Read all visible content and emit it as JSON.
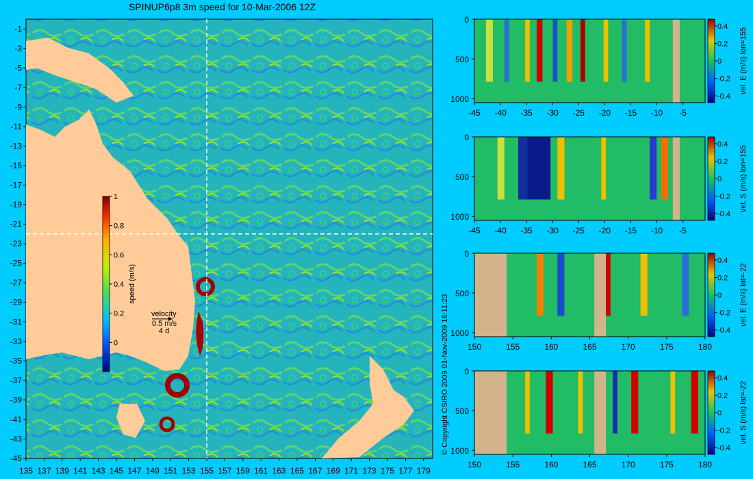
{
  "title": "SPINUP6p8 3m speed for 10-Mar-2006 12Z",
  "copyright": "© Copyright CSIRO 2009   01-Nov-2009 16:11:23",
  "colors": {
    "background": "#00ccff",
    "land_map": "#ffcc99",
    "land_section": "#d2b48c",
    "ocean": "#2ab6c0",
    "crosshair": "#ffffff"
  },
  "map": {
    "lat_labels": [
      "-1",
      "-3",
      "-5",
      "-7",
      "-9",
      "-11",
      "-13",
      "-15",
      "-17",
      "-19",
      "-21",
      "-23",
      "-25",
      "-27",
      "-29",
      "-31",
      "-33",
      "-35",
      "-37",
      "-39",
      "-41",
      "-43",
      "-45"
    ],
    "lon_labels": [
      "135",
      "137",
      "139",
      "141",
      "143",
      "145",
      "147",
      "149",
      "151",
      "153",
      "155",
      "157",
      "159",
      "161",
      "163",
      "165",
      "167",
      "169",
      "171",
      "173",
      "175",
      "177",
      "179"
    ],
    "crosshair": {
      "lon": 155,
      "lat": -22
    },
    "colorbar": {
      "label": "speed (m/s)",
      "ticks": [
        "1",
        "0.8",
        "0.6",
        "0.4",
        "0.2",
        "0"
      ],
      "range": [
        -0.2,
        1
      ]
    },
    "velocity_key": {
      "label": "velocity",
      "speed": "0.5 m/s",
      "time": "4 d"
    }
  },
  "sections": [
    {
      "id": "E-lon155",
      "colorbar_label": "vel. E (m/s) lon=155",
      "x_ticks": [
        "-45",
        "-40",
        "-35",
        "-30",
        "-25",
        "-20",
        "-15",
        "-10",
        "-5"
      ],
      "y_ticks": [
        "0",
        "500",
        "1000"
      ],
      "cb_ticks": [
        "0.4",
        "0.2",
        "0",
        "-0.2",
        "-0.4"
      ]
    },
    {
      "id": "S-lon155",
      "colorbar_label": "vel. S (m/s) lon=155",
      "x_ticks": [
        "-45",
        "-40",
        "-35",
        "-30",
        "-25",
        "-20",
        "-15",
        "-10",
        "-5"
      ],
      "y_ticks": [
        "0",
        "500",
        "1000"
      ],
      "cb_ticks": [
        "0.4",
        "0.2",
        "0",
        "-0.2",
        "-0.4"
      ]
    },
    {
      "id": "E-lat-22",
      "colorbar_label": "vel. E (m/s) lat=-22",
      "x_ticks": [
        "150",
        "155",
        "160",
        "165",
        "170",
        "175",
        "180"
      ],
      "y_ticks": [
        "0",
        "500",
        "1000"
      ],
      "cb_ticks": [
        "0.4",
        "0.2",
        "0",
        "-0.2",
        "-0.4"
      ]
    },
    {
      "id": "S-lat-22",
      "colorbar_label": "vel. S (m/s) lat=-22",
      "x_ticks": [
        "150",
        "155",
        "160",
        "165",
        "170",
        "175",
        "180"
      ],
      "y_ticks": [
        "0",
        "500",
        "1000"
      ],
      "cb_ticks": [
        "0.4",
        "0.2",
        "0",
        "-0.2",
        "-0.4"
      ]
    }
  ]
}
